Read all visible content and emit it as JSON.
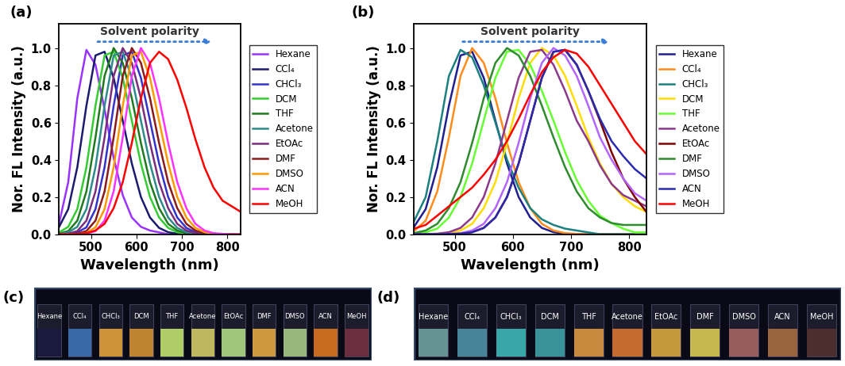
{
  "chart_data": [
    {
      "type": "line",
      "title": "(a)",
      "xlabel": "Wavelength (nm)",
      "ylabel": "Nor. FL Intensity (a.u.)",
      "annotations": [
        "Solvent polarity"
      ],
      "legend": "right",
      "xlim": [
        430,
        830
      ],
      "xticks": [
        500,
        600,
        700,
        800
      ],
      "ylim": [
        0,
        1.13
      ],
      "yticks": [
        0.0,
        0.2,
        0.4,
        0.6,
        0.8,
        1.0
      ],
      "x": [
        430,
        450,
        470,
        490,
        510,
        530,
        550,
        570,
        590,
        610,
        630,
        650,
        670,
        690,
        710,
        730,
        750,
        770,
        790,
        810,
        830
      ],
      "series": [
        {
          "name": "Hexane",
          "color": "#9933ff",
          "values": [
            0.06,
            0.28,
            0.73,
            0.99,
            0.91,
            0.67,
            0.41,
            0.21,
            0.09,
            0.04,
            0.02,
            0.01,
            0.0,
            0,
            0,
            0,
            0,
            0,
            0,
            0,
            0
          ]
        },
        {
          "name": "CCl₄",
          "color": "#1a1a6e",
          "values": [
            0.04,
            0.135,
            0.36,
            0.69,
            0.96,
            0.98,
            0.84,
            0.61,
            0.38,
            0.2,
            0.09,
            0.034,
            0.011,
            0.003,
            0,
            0,
            0,
            0,
            0,
            0,
            0
          ]
        },
        {
          "name": "CHCl₃",
          "color": "#3333cc",
          "values": [
            0,
            0,
            0.01,
            0.037,
            0.135,
            0.36,
            0.69,
            0.96,
            0.98,
            0.84,
            0.61,
            0.38,
            0.2,
            0.09,
            0.034,
            0.011,
            0.003,
            0,
            0,
            0,
            0
          ]
        },
        {
          "name": "DCM",
          "color": "#33cc33",
          "values": [
            0.01,
            0.04,
            0.135,
            0.36,
            0.69,
            0.96,
            0.98,
            0.84,
            0.61,
            0.38,
            0.2,
            0.09,
            0.034,
            0.011,
            0.003,
            0,
            0,
            0,
            0,
            0,
            0
          ]
        },
        {
          "name": "THF",
          "color": "#1f7a1f",
          "values": [
            0.003,
            0.017,
            0.073,
            0.23,
            0.52,
            0.85,
            1.0,
            0.92,
            0.73,
            0.49,
            0.28,
            0.14,
            0.056,
            0.02,
            0.006,
            0.002,
            0,
            0,
            0,
            0,
            0
          ]
        },
        {
          "name": "Acetone",
          "color": "#2e8b8b",
          "values": [
            0,
            0.01,
            0.04,
            0.135,
            0.36,
            0.69,
            0.96,
            0.98,
            0.84,
            0.61,
            0.38,
            0.2,
            0.09,
            0.034,
            0.011,
            0.003,
            0,
            0,
            0,
            0,
            0
          ]
        },
        {
          "name": "EtOAc",
          "color": "#7b2d7b",
          "values": [
            0,
            0.003,
            0.017,
            0.073,
            0.23,
            0.52,
            0.85,
            1.0,
            0.92,
            0.73,
            0.49,
            0.28,
            0.14,
            0.056,
            0.02,
            0.006,
            0.002,
            0,
            0,
            0,
            0
          ]
        },
        {
          "name": "DMF",
          "color": "#8b1a1a",
          "values": [
            0,
            0,
            0.003,
            0.017,
            0.073,
            0.23,
            0.52,
            0.85,
            1.0,
            0.92,
            0.73,
            0.49,
            0.28,
            0.14,
            0.056,
            0.02,
            0.006,
            0.002,
            0,
            0,
            0
          ]
        },
        {
          "name": "DMSO",
          "color": "#ff9900",
          "values": [
            0,
            0,
            0,
            0.007,
            0.037,
            0.135,
            0.36,
            0.69,
            0.96,
            0.98,
            0.84,
            0.61,
            0.38,
            0.2,
            0.09,
            0.034,
            0.011,
            0.003,
            0,
            0,
            0
          ]
        },
        {
          "name": "ACN",
          "color": "#ff33ff",
          "values": [
            0,
            0,
            0,
            0.003,
            0.017,
            0.073,
            0.23,
            0.52,
            0.85,
            1.0,
            0.92,
            0.73,
            0.49,
            0.28,
            0.14,
            0.056,
            0.02,
            0.006,
            0.002,
            0,
            0
          ]
        },
        {
          "name": "MeOH",
          "color": "#ff0000",
          "values": [
            0,
            0,
            0.002,
            0.006,
            0.02,
            0.056,
            0.14,
            0.28,
            0.49,
            0.73,
            0.92,
            0.98,
            0.94,
            0.83,
            0.68,
            0.51,
            0.36,
            0.25,
            0.18,
            0.15,
            0.12
          ]
        }
      ]
    },
    {
      "type": "line",
      "title": "(b)",
      "xlabel": "Wavelength (nm)",
      "ylabel": "Nor. FL Intensity (a.u.)",
      "annotations": [
        "Solvent polarity"
      ],
      "legend": "right",
      "xlim": [
        430,
        830
      ],
      "xticks": [
        500,
        600,
        700,
        800
      ],
      "ylim": [
        0,
        1.13
      ],
      "yticks": [
        0.0,
        0.2,
        0.4,
        0.6,
        0.8,
        1.0
      ],
      "x": [
        430,
        450,
        470,
        490,
        510,
        530,
        550,
        570,
        590,
        610,
        630,
        650,
        670,
        690,
        710,
        730,
        750,
        770,
        790,
        810,
        830
      ],
      "series": [
        {
          "name": "Hexane",
          "color": "#1f1f8f",
          "values": [
            0.04,
            0.135,
            0.36,
            0.69,
            0.96,
            0.98,
            0.84,
            0.61,
            0.38,
            0.2,
            0.09,
            0.034,
            0.011,
            0.003,
            0,
            0,
            0,
            0,
            0,
            0,
            0
          ]
        },
        {
          "name": "CCl₄",
          "color": "#ff8c1a",
          "values": [
            0.017,
            0.073,
            0.23,
            0.52,
            0.85,
            1.0,
            0.92,
            0.73,
            0.49,
            0.28,
            0.14,
            0.056,
            0.02,
            0.006,
            0.002,
            0,
            0,
            0,
            0,
            0,
            0
          ]
        },
        {
          "name": "CHCl₃",
          "color": "#1a8080",
          "values": [
            0.07,
            0.2,
            0.5,
            0.85,
            0.99,
            0.95,
            0.8,
            0.6,
            0.4,
            0.25,
            0.14,
            0.08,
            0.05,
            0.03,
            0.02,
            0.01,
            0,
            0,
            0,
            0,
            0
          ]
        },
        {
          "name": "DCM",
          "color": "#ffdd00",
          "values": [
            0,
            0,
            0.002,
            0.006,
            0.02,
            0.056,
            0.14,
            0.28,
            0.49,
            0.73,
            0.92,
            1.0,
            0.96,
            0.85,
            0.69,
            0.52,
            0.38,
            0.27,
            0.2,
            0.15,
            0.12
          ]
        },
        {
          "name": "THF",
          "color": "#66ff33",
          "values": [
            0,
            0.01,
            0.03,
            0.09,
            0.2,
            0.38,
            0.61,
            0.84,
            0.98,
            0.99,
            0.91,
            0.77,
            0.61,
            0.44,
            0.29,
            0.18,
            0.1,
            0.06,
            0.03,
            0.01,
            0.01
          ]
        },
        {
          "name": "Acetone",
          "color": "#8b3a8b",
          "values": [
            0,
            0.001,
            0.003,
            0.011,
            0.034,
            0.09,
            0.2,
            0.38,
            0.61,
            0.84,
            0.98,
            0.99,
            0.91,
            0.77,
            0.61,
            0.5,
            0.37,
            0.27,
            0.21,
            0.18,
            0.15
          ]
        },
        {
          "name": "EtOAc",
          "color": "#800000",
          "values": [
            0,
            0,
            0,
            0.001,
            0.003,
            0.011,
            0.034,
            0.09,
            0.2,
            0.38,
            0.61,
            0.84,
            0.98,
            0.99,
            0.91,
            0.77,
            0.61,
            0.44,
            0.3,
            0.2,
            0.12
          ]
        },
        {
          "name": "DMF",
          "color": "#2e8b2e",
          "values": [
            0.006,
            0.02,
            0.056,
            0.14,
            0.28,
            0.49,
            0.73,
            0.92,
            1.0,
            0.96,
            0.85,
            0.69,
            0.52,
            0.36,
            0.23,
            0.14,
            0.09,
            0.06,
            0.05,
            0.05,
            0.05
          ]
        },
        {
          "name": "DMSO",
          "color": "#b366ff",
          "values": [
            0,
            0,
            0,
            0.002,
            0.006,
            0.02,
            0.056,
            0.14,
            0.28,
            0.49,
            0.73,
            0.92,
            1.0,
            0.96,
            0.85,
            0.69,
            0.52,
            0.4,
            0.3,
            0.22,
            0.18
          ]
        },
        {
          "name": "ACN",
          "color": "#2a2ab0",
          "values": [
            0,
            0,
            0,
            0.001,
            0.003,
            0.011,
            0.034,
            0.09,
            0.2,
            0.38,
            0.61,
            0.84,
            0.98,
            0.99,
            0.91,
            0.77,
            0.62,
            0.5,
            0.42,
            0.35,
            0.3
          ]
        },
        {
          "name": "MeOH",
          "color": "#ff0000",
          "values": [
            0.03,
            0.05,
            0.1,
            0.15,
            0.2,
            0.25,
            0.32,
            0.4,
            0.5,
            0.62,
            0.75,
            0.87,
            0.95,
            0.99,
            0.97,
            0.9,
            0.8,
            0.7,
            0.6,
            0.5,
            0.43
          ]
        }
      ]
    }
  ],
  "photos": [
    {
      "title": "(c)",
      "labels": [
        "Hexane",
        "CCl₄",
        "CHCl₃",
        "DCM",
        "THF",
        "Acetone",
        "EtOAc",
        "DMF",
        "DMSO",
        "ACN",
        "MeOH"
      ],
      "colors": [
        "#1a1a40",
        "#3a6fb0",
        "#d99a3a",
        "#c88a30",
        "#b8d86a",
        "#c8c060",
        "#a8d080",
        "#d8a040",
        "#a0c080",
        "#d07020",
        "#703040"
      ]
    },
    {
      "title": "(d)",
      "labels": [
        "Hexane",
        "CCl₄",
        "CHCl₃",
        "DCM",
        "THF",
        "Acetone",
        "EtOAc",
        "DMF",
        "DMSO",
        "ACN",
        "MeOH"
      ],
      "colors": [
        "#6a9a9a",
        "#4a8aa0",
        "#3ab0b0",
        "#3a9aa0",
        "#d09040",
        "#d07030",
        "#d0a040",
        "#d0c050",
        "#a06060",
        "#a06840",
        "#503030"
      ]
    }
  ]
}
